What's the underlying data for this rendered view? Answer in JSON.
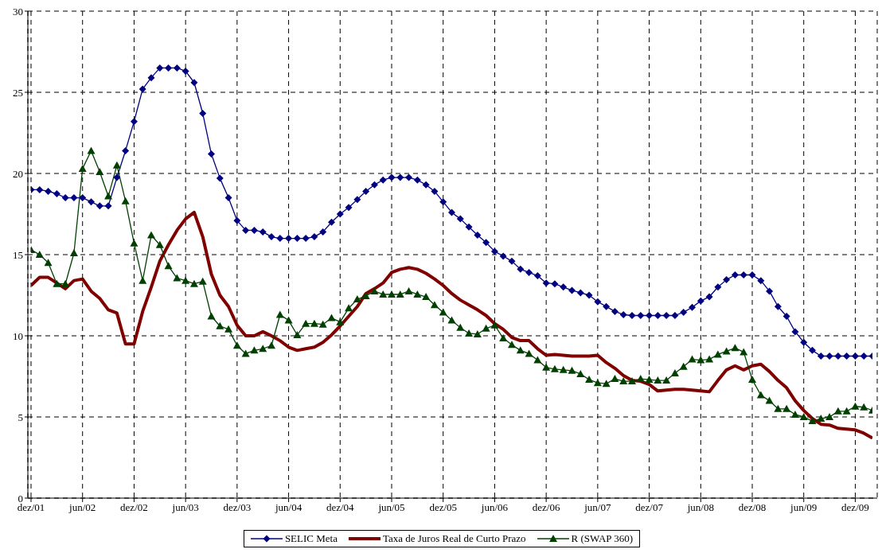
{
  "chart_data": {
    "type": "line",
    "categories": [
      "dez/01",
      null,
      null,
      null,
      null,
      null,
      "jun/02",
      null,
      null,
      null,
      null,
      null,
      "dez/02",
      null,
      null,
      null,
      null,
      null,
      "jun/03",
      null,
      null,
      null,
      null,
      null,
      "dez/03",
      null,
      null,
      null,
      null,
      null,
      "jun/04",
      null,
      null,
      null,
      null,
      null,
      "dez/04",
      null,
      null,
      null,
      null,
      null,
      "jun/05",
      null,
      null,
      null,
      null,
      null,
      "dez/05",
      null,
      null,
      null,
      null,
      null,
      "jun/06",
      null,
      null,
      null,
      null,
      null,
      "dez/06",
      null,
      null,
      null,
      null,
      null,
      "jun/07",
      null,
      null,
      null,
      null,
      null,
      "dez/07",
      null,
      null,
      null,
      null,
      null,
      "jun/08",
      null,
      null,
      null,
      null,
      null,
      "dez/08",
      null,
      null,
      null,
      null,
      null,
      "jun/09",
      null,
      null,
      null,
      null,
      null,
      "dez/09",
      null,
      null
    ],
    "series": [
      {
        "name": "SELIC Meta",
        "color": "#000080",
        "marker": "diamond",
        "values": [
          19.0,
          19.0,
          18.9,
          18.75,
          18.5,
          18.5,
          18.5,
          18.25,
          18.0,
          18.0,
          19.75,
          21.4,
          23.2,
          25.2,
          25.9,
          26.5,
          26.5,
          26.5,
          26.3,
          25.6,
          23.7,
          21.2,
          19.7,
          18.5,
          17.1,
          16.5,
          16.5,
          16.4,
          16.1,
          16.0,
          16.0,
          16.0,
          16.0,
          16.1,
          16.4,
          17.0,
          17.5,
          17.9,
          18.4,
          18.9,
          19.3,
          19.6,
          19.75,
          19.75,
          19.75,
          19.6,
          19.3,
          18.9,
          18.25,
          17.6,
          17.2,
          16.7,
          16.2,
          15.75,
          15.2,
          14.9,
          14.6,
          14.1,
          13.9,
          13.7,
          13.25,
          13.2,
          13.0,
          12.8,
          12.65,
          12.5,
          12.1,
          11.8,
          11.5,
          11.3,
          11.25,
          11.25,
          11.25,
          11.25,
          11.25,
          11.25,
          11.45,
          11.75,
          12.15,
          12.4,
          13.0,
          13.45,
          13.75,
          13.75,
          13.75,
          13.4,
          12.75,
          11.8,
          11.2,
          10.25,
          9.6,
          9.1,
          8.75,
          8.75,
          8.75,
          8.75,
          8.75,
          8.75,
          8.75
        ]
      },
      {
        "name": "Taxa de Juros Real de Curto Prazo",
        "color": "#800000",
        "marker": "none",
        "values": [
          13.1,
          13.6,
          13.6,
          13.25,
          12.9,
          13.4,
          13.5,
          12.75,
          12.3,
          11.6,
          11.4,
          9.5,
          9.5,
          11.5,
          13.0,
          14.6,
          15.6,
          16.5,
          17.2,
          17.6,
          16.1,
          13.8,
          12.5,
          11.8,
          10.65,
          10.0,
          10.0,
          10.25,
          10.0,
          9.7,
          9.3,
          9.1,
          9.2,
          9.3,
          9.6,
          10.05,
          10.6,
          11.2,
          11.8,
          12.6,
          12.9,
          13.25,
          13.9,
          14.1,
          14.2,
          14.1,
          13.85,
          13.5,
          13.1,
          12.6,
          12.2,
          11.9,
          11.6,
          11.25,
          10.75,
          10.4,
          9.9,
          9.7,
          9.7,
          9.2,
          8.8,
          8.85,
          8.8,
          8.75,
          8.75,
          8.75,
          8.8,
          8.35,
          8.0,
          7.55,
          7.25,
          7.2,
          7.0,
          6.6,
          6.65,
          6.7,
          6.7,
          6.65,
          6.6,
          6.55,
          7.25,
          7.9,
          8.15,
          7.9,
          8.15,
          8.25,
          7.8,
          7.25,
          6.8,
          6.0,
          5.4,
          4.9,
          4.55,
          4.5,
          4.3,
          4.25,
          4.2,
          4.0,
          3.7
        ]
      },
      {
        "name": "R (SWAP 360)",
        "color": "#004000",
        "marker": "triangle",
        "values": [
          15.3,
          15.0,
          14.5,
          13.2,
          13.2,
          15.1,
          20.3,
          21.4,
          20.1,
          18.6,
          20.5,
          18.3,
          15.7,
          13.4,
          16.2,
          15.6,
          14.3,
          13.55,
          13.4,
          13.2,
          13.35,
          11.2,
          10.6,
          10.4,
          9.4,
          8.9,
          9.1,
          9.2,
          9.4,
          11.3,
          10.95,
          10.05,
          10.75,
          10.75,
          10.7,
          11.1,
          10.85,
          11.7,
          12.25,
          12.45,
          12.75,
          12.55,
          12.55,
          12.55,
          12.75,
          12.55,
          12.4,
          11.9,
          11.45,
          10.95,
          10.5,
          10.15,
          10.1,
          10.45,
          10.65,
          9.85,
          9.45,
          9.1,
          8.9,
          8.5,
          8.05,
          7.95,
          7.9,
          7.85,
          7.65,
          7.3,
          7.1,
          7.05,
          7.35,
          7.2,
          7.2,
          7.35,
          7.3,
          7.25,
          7.25,
          7.7,
          8.1,
          8.55,
          8.5,
          8.55,
          8.85,
          9.05,
          9.25,
          9.0,
          7.3,
          6.35,
          6.0,
          5.5,
          5.5,
          5.15,
          5.0,
          4.75,
          4.9,
          5.0,
          5.35,
          5.35,
          5.65,
          5.6,
          5.4
        ]
      }
    ],
    "ylim": [
      0,
      30
    ],
    "yticks": [
      0,
      5,
      10,
      15,
      20,
      25,
      30
    ],
    "grid": true,
    "legend": "bottom",
    "line_style": "solid"
  }
}
